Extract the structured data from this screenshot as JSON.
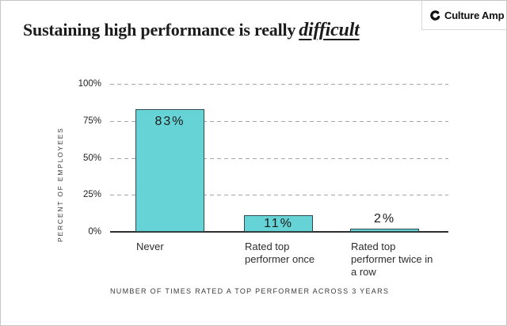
{
  "header": {
    "title_main": "Sustaining high performance is really",
    "title_emphasis": "difficult",
    "brand": {
      "name": "Culture Amp",
      "icon": "culture-amp-c-icon"
    }
  },
  "chart_data": {
    "type": "bar",
    "title": "Sustaining high performance is really difficult",
    "categories": [
      "Never",
      "Rated top performer once",
      "Rated top performer twice in a row"
    ],
    "values": [
      83,
      11,
      2
    ],
    "value_labels": [
      "83%",
      "11%",
      "2%"
    ],
    "value_label_placement": [
      "inside",
      "inside",
      "above"
    ],
    "xlabel": "NUMBER OF TIMES RATED A TOP PERFORMER ACROSS 3 YEARS",
    "ylabel": "PERCENT OF EMPLOYEES",
    "ylim": [
      0,
      100
    ],
    "yticks": [
      "0%",
      "25%",
      "50%",
      "75%",
      "100%"
    ],
    "ytick_values": [
      0,
      25,
      50,
      75,
      100
    ],
    "grid": "horizontal-dashed",
    "legend": "none",
    "bar_color": "#66D3D6",
    "bar_border_color": "#2F4A4C",
    "axis_color": "#2E2E2E",
    "grid_color": "#A6A6A6"
  }
}
